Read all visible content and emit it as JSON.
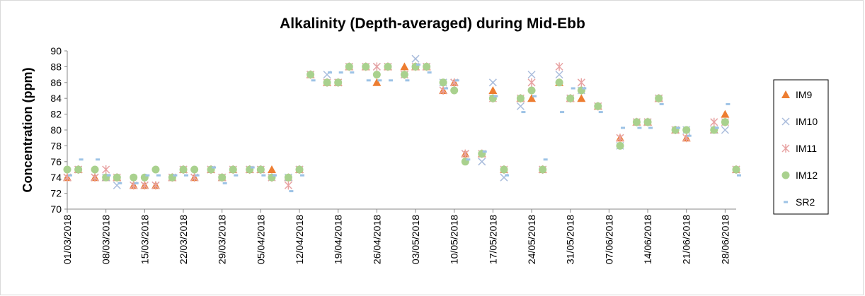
{
  "chart_data": {
    "type": "scatter",
    "title": "Alkalinity (Depth-averaged) during Mid-Ebb",
    "y_label": "Concentration (ppm)",
    "x": [
      "01/03/2018",
      "03/03/2018",
      "06/03/2018",
      "08/03/2018",
      "10/03/2018",
      "13/03/2018",
      "15/03/2018",
      "17/03/2018",
      "20/03/2018",
      "22/03/2018",
      "24/03/2018",
      "27/03/2018",
      "29/03/2018",
      "31/03/2018",
      "03/04/2018",
      "05/04/2018",
      "07/04/2018",
      "10/04/2018",
      "12/04/2018",
      "14/04/2018",
      "17/04/2018",
      "19/04/2018",
      "21/04/2018",
      "24/04/2018",
      "26/04/2018",
      "28/04/2018",
      "01/05/2018",
      "03/05/2018",
      "05/05/2018",
      "08/05/2018",
      "10/05/2018",
      "12/05/2018",
      "15/05/2018",
      "17/05/2018",
      "19/05/2018",
      "22/05/2018",
      "24/05/2018",
      "26/05/2018",
      "29/05/2018",
      "31/05/2018",
      "02/06/2018",
      "05/06/2018",
      "07/06/2018",
      "09/06/2018",
      "12/06/2018",
      "14/06/2018",
      "16/06/2018",
      "19/06/2018",
      "21/06/2018",
      "23/06/2018",
      "26/06/2018",
      "28/06/2018",
      "30/06/2018"
    ],
    "series": [
      {
        "name": "IM9",
        "color": "#ed7d31",
        "marker": "triangle",
        "values": [
          74,
          75,
          74,
          74,
          74,
          73,
          73,
          73,
          74,
          75,
          74,
          75,
          74,
          75,
          75,
          75,
          75,
          74,
          75,
          87,
          86,
          86,
          88,
          88,
          86,
          88,
          88,
          88,
          88,
          85,
          86,
          77,
          77,
          85,
          75,
          84,
          84,
          75,
          86,
          84,
          84,
          83,
          null,
          79,
          81,
          81,
          84,
          80,
          79,
          null,
          80,
          82,
          75
        ]
      },
      {
        "name": "IM10",
        "color": "#a9bcdc",
        "marker": "x",
        "values": [
          74,
          75,
          74,
          74,
          73,
          73,
          73,
          73,
          74,
          75,
          74,
          75,
          74,
          75,
          75,
          75,
          74,
          74,
          75,
          87,
          87,
          86,
          88,
          88,
          88,
          88,
          87,
          89,
          88,
          86,
          86,
          77,
          76,
          86,
          74,
          83,
          87,
          75,
          87,
          84,
          85,
          83,
          null,
          78,
          81,
          81,
          84,
          80,
          80,
          null,
          80,
          80,
          75
        ]
      },
      {
        "name": "IM11",
        "color": "#e8a3a3",
        "marker": "star",
        "values": [
          74,
          75,
          74,
          75,
          74,
          73,
          73,
          73,
          74,
          75,
          74,
          75,
          74,
          75,
          75,
          75,
          74,
          73,
          75,
          87,
          86,
          86,
          88,
          88,
          88,
          88,
          87,
          88,
          88,
          85,
          86,
          77,
          77,
          84,
          75,
          84,
          86,
          75,
          88,
          84,
          86,
          83,
          null,
          79,
          81,
          81,
          84,
          80,
          79,
          null,
          81,
          81,
          75
        ]
      },
      {
        "name": "IM12",
        "color": "#a9d18e",
        "marker": "circle",
        "values": [
          75,
          75,
          75,
          74,
          74,
          74,
          74,
          75,
          74,
          75,
          75,
          75,
          74,
          75,
          75,
          75,
          74,
          74,
          75,
          87,
          86,
          86,
          88,
          88,
          87,
          88,
          87,
          88,
          88,
          86,
          85,
          76,
          77,
          84,
          75,
          84,
          85,
          75,
          86,
          84,
          85,
          83,
          null,
          78,
          81,
          81,
          84,
          80,
          80,
          null,
          80,
          81,
          75
        ]
      },
      {
        "name": "SR2",
        "color": "#9dc3e6",
        "marker": "dash",
        "values": [
          74,
          76,
          76,
          74,
          73,
          73,
          74,
          74,
          74,
          74,
          74,
          75,
          73,
          74,
          75,
          74,
          74,
          72,
          74,
          86,
          87,
          87,
          87,
          86,
          86,
          86,
          86,
          88,
          87,
          85,
          86,
          76,
          77,
          84,
          74,
          82,
          84,
          76,
          82,
          85,
          85,
          82,
          null,
          80,
          80,
          80,
          83,
          80,
          79,
          null,
          80,
          83,
          74
        ]
      }
    ],
    "xlim": [
      "01/03/2018",
      "30/06/2018"
    ],
    "xticks": [
      "01/03/2018",
      "08/03/2018",
      "15/03/2018",
      "22/03/2018",
      "29/03/2018",
      "05/04/2018",
      "12/04/2018",
      "19/04/2018",
      "26/04/2018",
      "03/05/2018",
      "10/05/2018",
      "17/05/2018",
      "24/05/2018",
      "31/05/2018",
      "07/06/2018",
      "14/06/2018",
      "21/06/2018",
      "28/06/2018"
    ],
    "ylim": [
      70,
      90
    ],
    "yticks": [
      70,
      72,
      74,
      76,
      78,
      80,
      82,
      84,
      86,
      88,
      90
    ],
    "grid": false,
    "legend": "right"
  }
}
